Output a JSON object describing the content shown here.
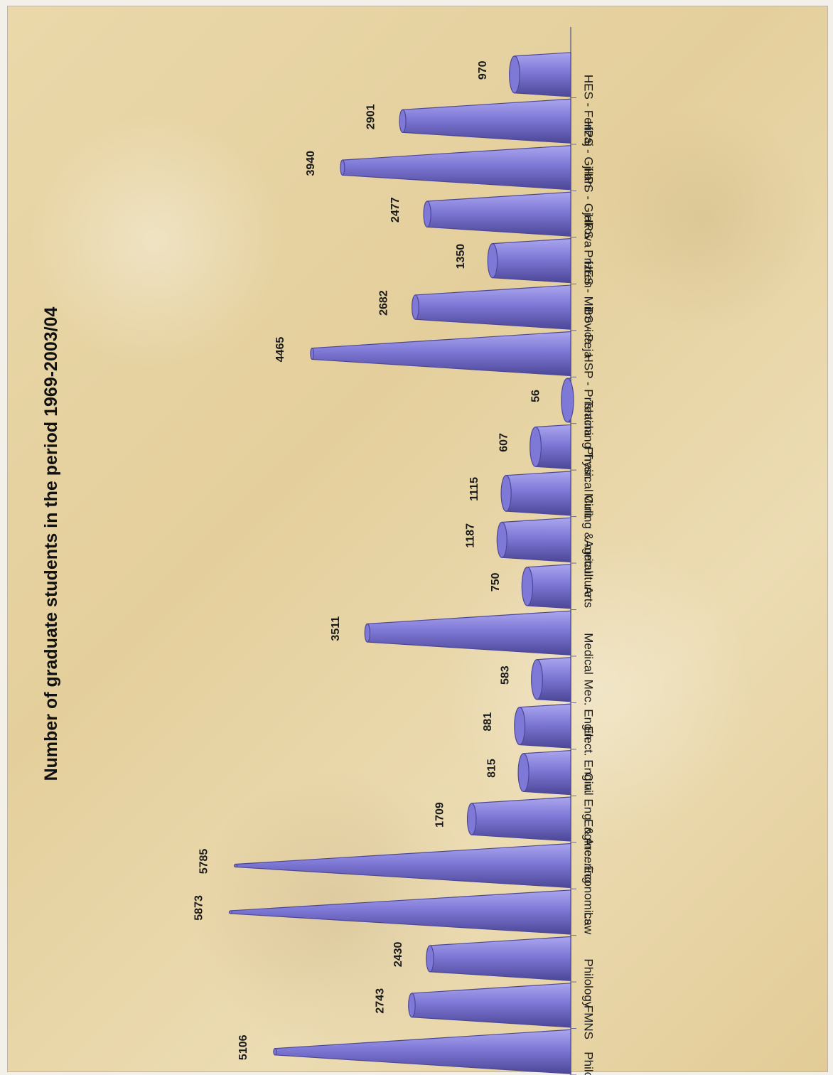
{
  "chart_data": {
    "type": "bar",
    "title": "Number of graduate students in the period 1969-2003/04",
    "categories": [
      "Philosophy",
      "FMNS",
      "Philology",
      "Law",
      "Economics",
      "Engineering",
      "Civil Eng. & Arc...",
      "Elect. Engin.",
      "Mec. Engin.",
      "Medical",
      "Arts",
      "Agriculture",
      "Mining & metal.",
      "Physical Cult.",
      "Teaching Train.",
      "HSP - Prishtina",
      "BS - Peja",
      "HES - Mitrovica",
      "HPS - Prizren",
      "HPS - Gjakova",
      "HPS - Gjilan",
      "HES - Ferizaj"
    ],
    "values": [
      5106,
      2743,
      2430,
      5873,
      5785,
      1709,
      815,
      881,
      583,
      3511,
      750,
      1187,
      1115,
      607,
      56,
      4465,
      2682,
      1350,
      2477,
      3940,
      2901,
      970
    ],
    "colors": {
      "bar_fill": "#7e78d6",
      "bar_dark": "#4d4798",
      "bar_light": "#aaa6ee",
      "background": "#e8d6a6"
    },
    "grid": false,
    "legend": "none",
    "orientation": "rotated 90 degrees clockwise; cone-shaped bars"
  }
}
